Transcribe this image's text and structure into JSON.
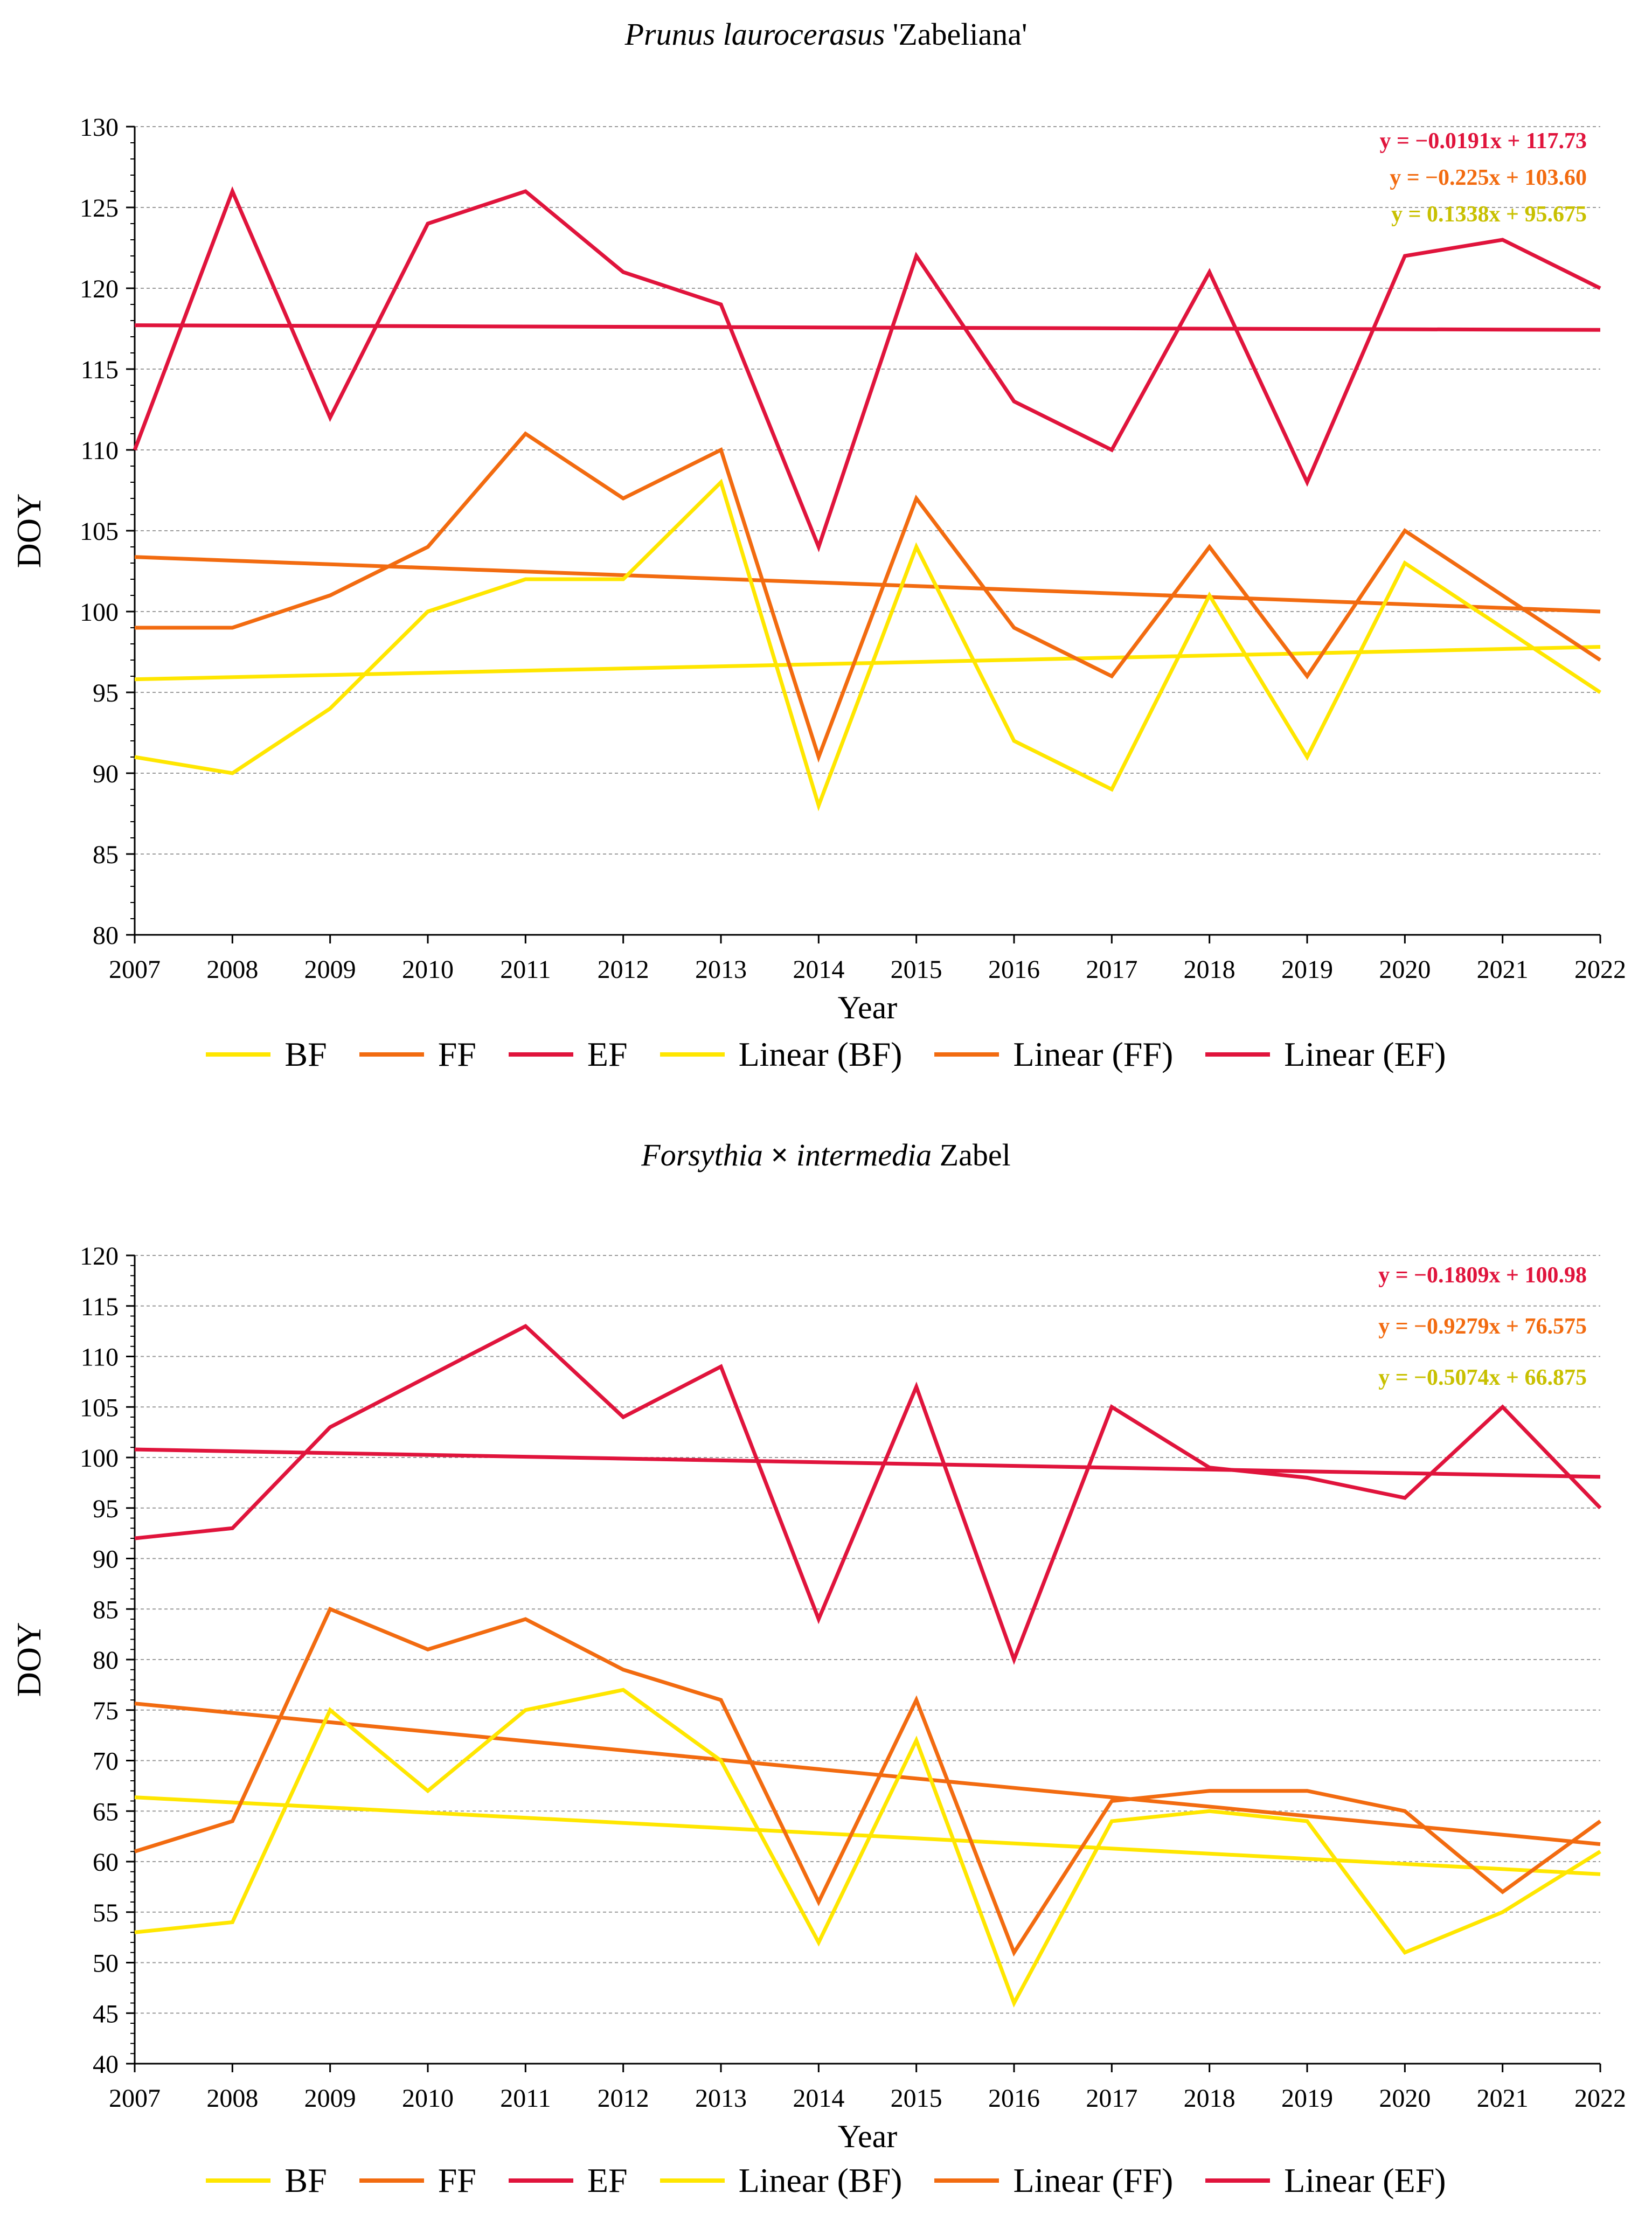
{
  "colors": {
    "bf": "#FFE600",
    "ff": "#F26B10",
    "ef": "#E0143C",
    "eq_bf": "#C8C000",
    "grid": "#9a9a9a"
  },
  "chart_data": [
    {
      "type": "line",
      "title_italic": "Prunus laurocerasus",
      "title_rest": " 'Zabeliana'",
      "xlabel": "Year",
      "ylabel": "DOY",
      "ylim": [
        80,
        130
      ],
      "ystep": 5,
      "x": [
        "2007",
        "2008",
        "2009",
        "2010",
        "2011",
        "2012",
        "2013",
        "2014",
        "2015",
        "2016",
        "2017",
        "2018",
        "2019",
        "2020",
        "2021",
        "2022"
      ],
      "series": [
        {
          "key": "bf",
          "name": "BF",
          "values": [
            91,
            90,
            94,
            100,
            102,
            102,
            108,
            88,
            104,
            92,
            89,
            101,
            91,
            103,
            99,
            95
          ]
        },
        {
          "key": "ff",
          "name": "FF",
          "values": [
            99,
            99,
            101,
            104,
            111,
            107,
            110,
            91,
            107,
            99,
            96,
            104,
            96,
            105,
            101,
            97
          ]
        },
        {
          "key": "ef",
          "name": "EF",
          "values": [
            110,
            126,
            112,
            124,
            126,
            121,
            119,
            104,
            122,
            113,
            110,
            121,
            108,
            122,
            123,
            120
          ]
        }
      ],
      "trendlines": [
        {
          "key": "bf",
          "name": "Linear (BF)",
          "slope": 0.1338,
          "intercept": 95.675,
          "equation": "y = 0.1338x + 95.675"
        },
        {
          "key": "ff",
          "name": "Linear (FF)",
          "slope": -0.225,
          "intercept": 103.6,
          "equation": "y = −0.225x + 103.60"
        },
        {
          "key": "ef",
          "name": "Linear (EF)",
          "slope": -0.0191,
          "intercept": 117.73,
          "equation": "y = −0.0191x + 117.73"
        }
      ],
      "legend": [
        "BF",
        "FF",
        "EF",
        "Linear (BF)",
        "Linear (FF)",
        "Linear (EF)"
      ]
    },
    {
      "type": "line",
      "title_italic": "Forsythia",
      "title_times": " × ",
      "title_italic2": "intermedia",
      "title_rest": " Zabel",
      "xlabel": "Year",
      "ylabel": "DOY",
      "ylim": [
        40,
        120
      ],
      "ystep": 5,
      "x": [
        "2007",
        "2008",
        "2009",
        "2010",
        "2011",
        "2012",
        "2013",
        "2014",
        "2015",
        "2016",
        "2017",
        "2018",
        "2019",
        "2020",
        "2021",
        "2022"
      ],
      "series": [
        {
          "key": "bf",
          "name": "BF",
          "values": [
            53,
            54,
            75,
            67,
            75,
            77,
            70,
            52,
            72,
            46,
            64,
            65,
            64,
            51,
            55,
            61
          ]
        },
        {
          "key": "ff",
          "name": "FF",
          "values": [
            61,
            64,
            85,
            81,
            84,
            79,
            76,
            56,
            76,
            51,
            66,
            67,
            67,
            65,
            57,
            64
          ]
        },
        {
          "key": "ef",
          "name": "EF",
          "values": [
            92,
            93,
            103,
            108,
            113,
            104,
            109,
            84,
            107,
            80,
            105,
            99,
            98,
            96,
            105,
            95
          ]
        }
      ],
      "trendlines": [
        {
          "key": "bf",
          "name": "Linear (BF)",
          "slope": -0.5074,
          "intercept": 66.875,
          "equation": "y = −0.5074x + 66.875"
        },
        {
          "key": "ff",
          "name": "Linear (FF)",
          "slope": -0.9279,
          "intercept": 76.575,
          "equation": "y = −0.9279x + 76.575"
        },
        {
          "key": "ef",
          "name": "Linear (EF)",
          "slope": -0.1809,
          "intercept": 100.98,
          "equation": "y = −0.1809x + 100.98"
        }
      ],
      "legend": [
        "BF",
        "FF",
        "EF",
        "Linear (BF)",
        "Linear (FF)",
        "Linear (EF)"
      ]
    }
  ]
}
